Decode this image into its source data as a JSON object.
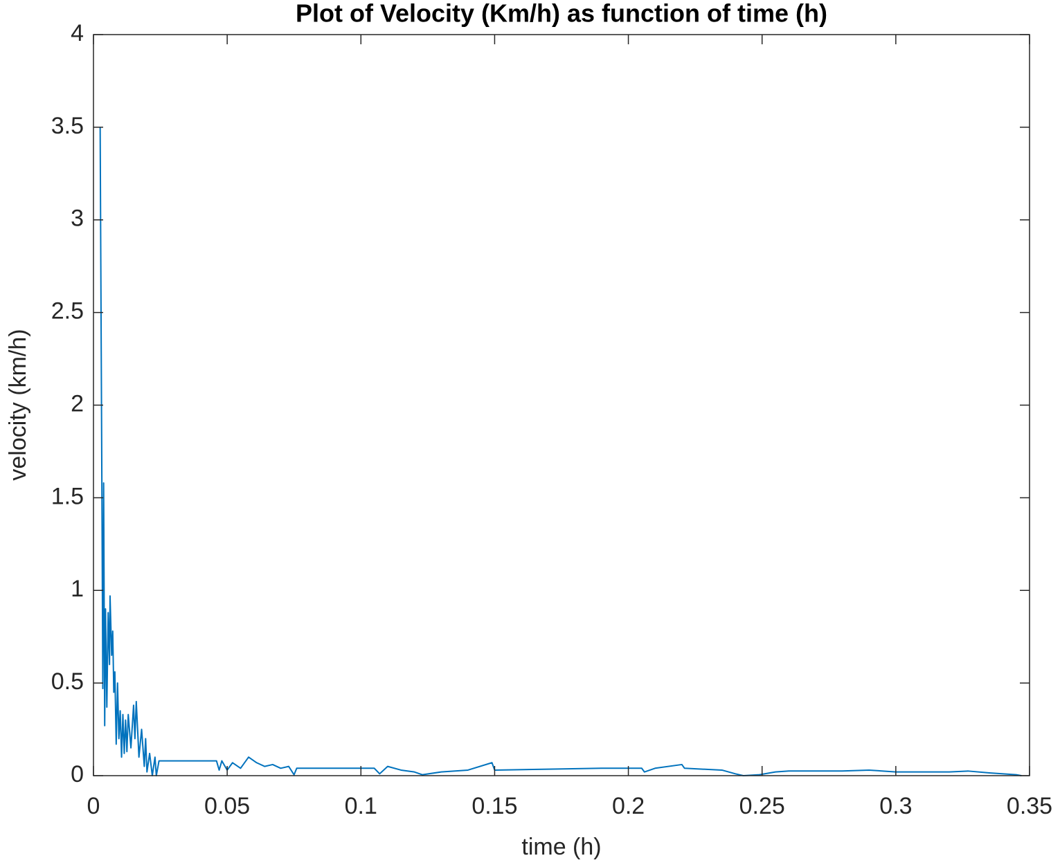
{
  "chart_data": {
    "type": "line",
    "title": "Plot of Velocity (Km/h) as function of time (h)",
    "x_label": "time (h)",
    "y_label": "velocity (km/h)",
    "color": "#0072bd",
    "xlim": [
      0,
      0.35
    ],
    "xticks": [
      0,
      0.05,
      0.1,
      0.15,
      0.2,
      0.25,
      0.3,
      0.35
    ],
    "ylim": [
      0,
      4
    ],
    "yticks": [
      0,
      0.5,
      1,
      1.5,
      2,
      2.5,
      3,
      3.5,
      4
    ],
    "grid": false,
    "box": true,
    "x": [
      0.0025,
      0.003,
      0.0035,
      0.0038,
      0.0042,
      0.0045,
      0.005,
      0.0055,
      0.006,
      0.0062,
      0.0068,
      0.0072,
      0.0076,
      0.008,
      0.0085,
      0.009,
      0.0095,
      0.01,
      0.0105,
      0.011,
      0.0115,
      0.012,
      0.0125,
      0.013,
      0.014,
      0.015,
      0.0155,
      0.016,
      0.017,
      0.018,
      0.019,
      0.0195,
      0.02,
      0.021,
      0.022,
      0.023,
      0.0235,
      0.0245,
      0.046,
      0.047,
      0.048,
      0.05,
      0.052,
      0.055,
      0.058,
      0.061,
      0.064,
      0.067,
      0.07,
      0.073,
      0.075,
      0.076,
      0.105,
      0.107,
      0.11,
      0.115,
      0.12,
      0.123,
      0.13,
      0.14,
      0.149,
      0.15,
      0.17,
      0.19,
      0.205,
      0.206,
      0.21,
      0.22,
      0.221,
      0.235,
      0.24,
      0.243,
      0.249,
      0.255,
      0.26,
      0.28,
      0.29,
      0.3,
      0.32,
      0.327,
      0.335,
      0.345,
      0.347
    ],
    "values": [
      3.5,
      2.0,
      0.47,
      1.58,
      0.27,
      0.9,
      0.37,
      0.88,
      0.6,
      0.97,
      0.65,
      0.78,
      0.45,
      0.56,
      0.17,
      0.5,
      0.2,
      0.35,
      0.1,
      0.33,
      0.12,
      0.3,
      0.13,
      0.33,
      0.15,
      0.38,
      0.2,
      0.4,
      0.1,
      0.25,
      0.05,
      0.2,
      0.02,
      0.12,
      0.0,
      0.1,
      0.0,
      0.08,
      0.08,
      0.03,
      0.08,
      0.03,
      0.07,
      0.04,
      0.1,
      0.07,
      0.05,
      0.06,
      0.04,
      0.05,
      0.005,
      0.04,
      0.04,
      0.01,
      0.05,
      0.03,
      0.02,
      0.005,
      0.02,
      0.03,
      0.07,
      0.03,
      0.035,
      0.04,
      0.04,
      0.02,
      0.04,
      0.06,
      0.04,
      0.03,
      0.01,
      0.0,
      0.005,
      0.02,
      0.025,
      0.025,
      0.03,
      0.02,
      0.02,
      0.025,
      0.015,
      0.005,
      0.0
    ]
  }
}
